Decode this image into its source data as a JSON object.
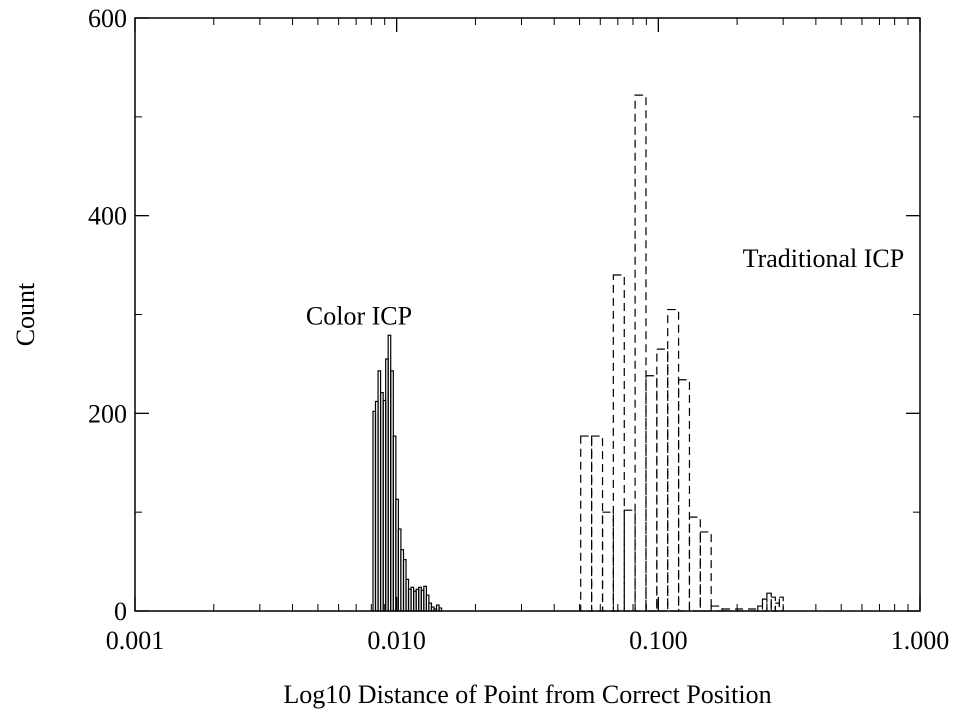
{
  "chart_data": {
    "type": "bar",
    "title": "",
    "xlabel": "Log10 Distance of Point from Correct Position",
    "ylabel": "Count",
    "x_scale": "log",
    "xlim": [
      0.001,
      1.0
    ],
    "ylim": [
      0,
      600
    ],
    "x_ticks": [
      0.001,
      0.01,
      0.1,
      1.0
    ],
    "x_tick_labels": [
      "0.001",
      "0.010",
      "0.100",
      "1.000"
    ],
    "y_ticks": [
      0,
      200,
      400,
      600
    ],
    "y_tick_labels": [
      "0",
      "200",
      "400",
      "600"
    ],
    "grid": false,
    "legend": "none",
    "annotations": [
      {
        "text": "Color ICP",
        "x": 0.0045,
        "y": 290
      },
      {
        "text": "Traditional ICP",
        "x": 0.21,
        "y": 348
      }
    ],
    "series": [
      {
        "style": "solid",
        "values": [
          {
            "x0": 0.00812,
            "x1": 0.0083,
            "count": 202
          },
          {
            "x0": 0.0083,
            "x1": 0.00849,
            "count": 212
          },
          {
            "x0": 0.00849,
            "x1": 0.00868,
            "count": 243
          },
          {
            "x0": 0.00868,
            "x1": 0.00888,
            "count": 221
          },
          {
            "x0": 0.00888,
            "x1": 0.00908,
            "count": 213
          },
          {
            "x0": 0.00908,
            "x1": 0.00928,
            "count": 255
          },
          {
            "x0": 0.00928,
            "x1": 0.00949,
            "count": 279
          },
          {
            "x0": 0.00949,
            "x1": 0.00971,
            "count": 243
          },
          {
            "x0": 0.00971,
            "x1": 0.00993,
            "count": 177
          },
          {
            "x0": 0.00993,
            "x1": 0.01015,
            "count": 113
          },
          {
            "x0": 0.01015,
            "x1": 0.01038,
            "count": 83
          },
          {
            "x0": 0.01038,
            "x1": 0.01062,
            "count": 62
          },
          {
            "x0": 0.01062,
            "x1": 0.01086,
            "count": 52
          },
          {
            "x0": 0.01086,
            "x1": 0.0111,
            "count": 32
          },
          {
            "x0": 0.0111,
            "x1": 0.01135,
            "count": 22
          },
          {
            "x0": 0.01135,
            "x1": 0.01161,
            "count": 24
          },
          {
            "x0": 0.01161,
            "x1": 0.01187,
            "count": 20
          },
          {
            "x0": 0.01187,
            "x1": 0.01214,
            "count": 22
          },
          {
            "x0": 0.01214,
            "x1": 0.01242,
            "count": 24
          },
          {
            "x0": 0.01242,
            "x1": 0.0127,
            "count": 21
          },
          {
            "x0": 0.0127,
            "x1": 0.01299,
            "count": 25
          },
          {
            "x0": 0.01299,
            "x1": 0.01328,
            "count": 16
          },
          {
            "x0": 0.01328,
            "x1": 0.01358,
            "count": 8
          },
          {
            "x0": 0.01358,
            "x1": 0.01389,
            "count": 4
          },
          {
            "x0": 0.01389,
            "x1": 0.0142,
            "count": 2
          },
          {
            "x0": 0.0142,
            "x1": 0.01452,
            "count": 6
          },
          {
            "x0": 0.01452,
            "x1": 0.01485,
            "count": 3
          }
        ]
      },
      {
        "style": "dashed",
        "values": [
          {
            "x0": 0.0505,
            "x1": 0.0556,
            "count": 177
          },
          {
            "x0": 0.0556,
            "x1": 0.0612,
            "count": 177
          },
          {
            "x0": 0.0612,
            "x1": 0.0673,
            "count": 100
          },
          {
            "x0": 0.0673,
            "x1": 0.0741,
            "count": 340
          },
          {
            "x0": 0.0741,
            "x1": 0.0815,
            "count": 102
          },
          {
            "x0": 0.0815,
            "x1": 0.0897,
            "count": 522
          },
          {
            "x0": 0.0897,
            "x1": 0.0987,
            "count": 238
          },
          {
            "x0": 0.0987,
            "x1": 0.1086,
            "count": 265
          },
          {
            "x0": 0.1086,
            "x1": 0.1195,
            "count": 305
          },
          {
            "x0": 0.1195,
            "x1": 0.1315,
            "count": 234
          },
          {
            "x0": 0.1315,
            "x1": 0.1447,
            "count": 95
          },
          {
            "x0": 0.1447,
            "x1": 0.1592,
            "count": 80
          },
          {
            "x0": 0.1592,
            "x1": 0.1752,
            "count": 5
          },
          {
            "x0": 0.1752,
            "x1": 0.24,
            "count": 2
          },
          {
            "x0": 0.24,
            "x1": 0.25,
            "count": 5
          },
          {
            "x0": 0.25,
            "x1": 0.26,
            "count": 12
          },
          {
            "x0": 0.26,
            "x1": 0.27,
            "count": 18
          },
          {
            "x0": 0.27,
            "x1": 0.28,
            "count": 14
          },
          {
            "x0": 0.28,
            "x1": 0.29,
            "count": 8
          },
          {
            "x0": 0.29,
            "x1": 0.3,
            "count": 14
          }
        ]
      }
    ]
  }
}
